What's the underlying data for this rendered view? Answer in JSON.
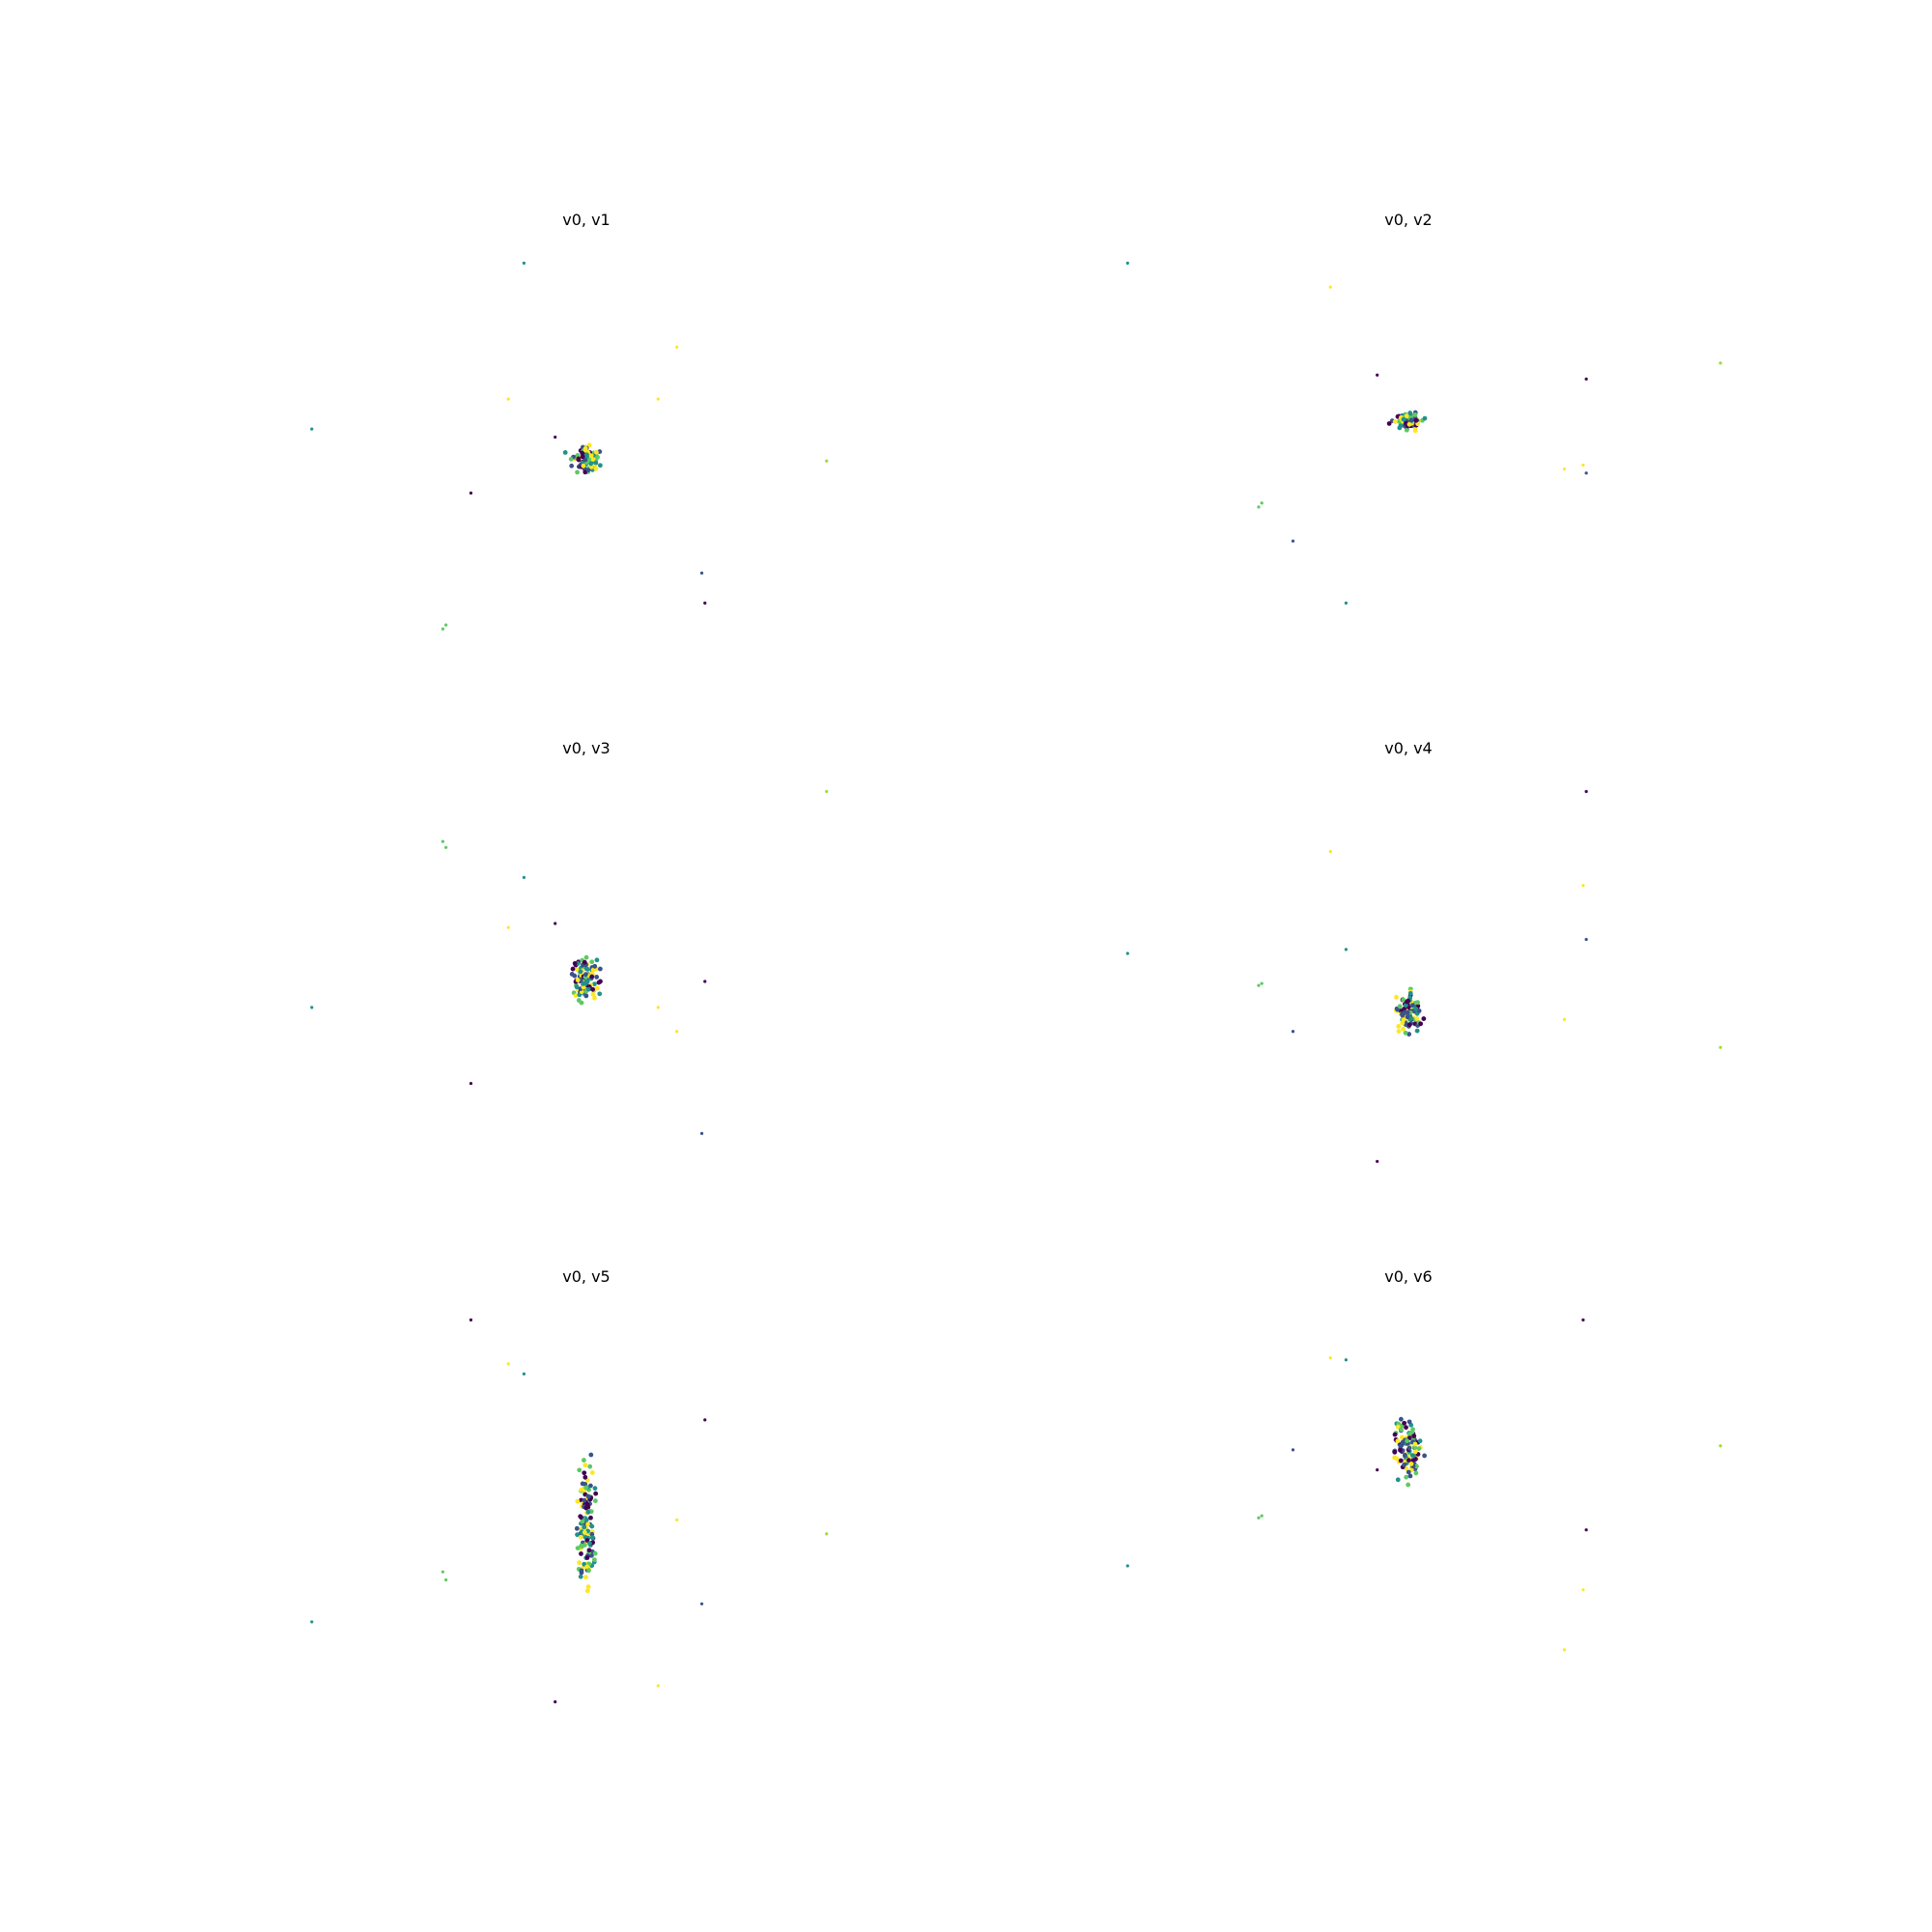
{
  "colors": {
    "c0": "#440154",
    "c1": "#3b528b",
    "c2": "#21918c",
    "c3": "#5ec962",
    "c4": "#fde725",
    "c5": "#a0da39"
  },
  "chart_data": [
    {
      "type": "scatter",
      "title": "v0, v1",
      "xlabel": "",
      "ylabel": "",
      "axes": "off",
      "grid": false,
      "xlim": [
        -1,
        1
      ],
      "ylim": [
        -1,
        1
      ],
      "outliers": [
        [
          -0.2,
          0.95,
          "c2"
        ],
        [
          0.29,
          0.53,
          "c4"
        ],
        [
          -0.25,
          0.27,
          "c4"
        ],
        [
          0.23,
          0.27,
          "c4"
        ],
        [
          -0.88,
          0.12,
          "c2"
        ],
        [
          -0.1,
          0.08,
          "c0"
        ],
        [
          -0.37,
          -0.2,
          "c0"
        ],
        [
          0.77,
          -0.04,
          "c5"
        ],
        [
          0.37,
          -0.6,
          "c1"
        ],
        [
          0.38,
          -0.75,
          "c0"
        ],
        [
          -0.46,
          -0.88,
          "c3"
        ],
        [
          -0.45,
          -0.86,
          "c3"
        ]
      ],
      "cluster": {
        "cx": 0.0,
        "cy": -0.03,
        "sx": 0.03,
        "sy": 0.045,
        "n": 90
      }
    },
    {
      "type": "scatter",
      "title": "v0, v2",
      "xlabel": "",
      "ylabel": "",
      "axes": "off",
      "grid": false,
      "xlim": [
        -1,
        1
      ],
      "ylim": [
        -1,
        1
      ],
      "outliers": [
        [
          -0.9,
          0.95,
          "c2"
        ],
        [
          -0.25,
          0.83,
          "c4"
        ],
        [
          -0.1,
          0.39,
          "c0"
        ],
        [
          0.57,
          0.37,
          "c0"
        ],
        [
          1.0,
          0.45,
          "c5"
        ],
        [
          0.5,
          -0.08,
          "c4"
        ],
        [
          0.56,
          -0.06,
          "c4"
        ],
        [
          0.57,
          -0.1,
          "c1"
        ],
        [
          -0.48,
          -0.27,
          "c3"
        ],
        [
          -0.47,
          -0.25,
          "c3"
        ],
        [
          -0.37,
          -0.44,
          "c1"
        ],
        [
          -0.2,
          -0.75,
          "c2"
        ]
      ],
      "cluster": {
        "cx": 0.0,
        "cy": 0.16,
        "sx": 0.03,
        "sy": 0.03,
        "n": 90
      }
    },
    {
      "type": "scatter",
      "title": "v0, v3",
      "xlabel": "",
      "ylabel": "",
      "axes": "off",
      "grid": false,
      "xlim": [
        -1,
        1
      ],
      "ylim": [
        -1,
        1
      ],
      "outliers": [
        [
          -0.46,
          0.7,
          "c3"
        ],
        [
          -0.45,
          0.67,
          "c3"
        ],
        [
          -0.2,
          0.52,
          "c2"
        ],
        [
          -0.25,
          0.27,
          "c4"
        ],
        [
          -0.1,
          0.29,
          "c0"
        ],
        [
          0.77,
          0.95,
          "c5"
        ],
        [
          0.38,
          0.0,
          "c0"
        ],
        [
          0.23,
          -0.13,
          "c4"
        ],
        [
          0.29,
          -0.25,
          "c4"
        ],
        [
          -0.88,
          -0.13,
          "c2"
        ],
        [
          -0.37,
          -0.51,
          "c0"
        ],
        [
          0.37,
          -0.76,
          "c1"
        ]
      ],
      "cluster": {
        "cx": 0.0,
        "cy": 0.0,
        "sx": 0.03,
        "sy": 0.07,
        "n": 100
      }
    },
    {
      "type": "scatter",
      "title": "v0, v4",
      "xlabel": "",
      "ylabel": "",
      "axes": "off",
      "grid": false,
      "xlim": [
        -1,
        1
      ],
      "ylim": [
        -1,
        1
      ],
      "outliers": [
        [
          0.57,
          0.95,
          "c0"
        ],
        [
          -0.25,
          0.65,
          "c4"
        ],
        [
          0.56,
          0.48,
          "c4"
        ],
        [
          -0.9,
          0.14,
          "c2"
        ],
        [
          -0.2,
          0.16,
          "c2"
        ],
        [
          0.57,
          0.21,
          "c1"
        ],
        [
          -0.48,
          -0.02,
          "c3"
        ],
        [
          -0.47,
          -0.01,
          "c3"
        ],
        [
          0.5,
          -0.19,
          "c4"
        ],
        [
          -0.37,
          -0.25,
          "c1"
        ],
        [
          1.0,
          -0.33,
          "c5"
        ],
        [
          -0.1,
          -0.9,
          "c0"
        ]
      ],
      "cluster": {
        "cx": 0.0,
        "cy": -0.16,
        "sx": 0.03,
        "sy": 0.07,
        "n": 100
      }
    },
    {
      "type": "scatter",
      "title": "v0, v5",
      "xlabel": "",
      "ylabel": "",
      "axes": "off",
      "grid": false,
      "xlim": [
        -1,
        1
      ],
      "ylim": [
        -1,
        1
      ],
      "outliers": [
        [
          -0.37,
          0.95,
          "c0"
        ],
        [
          -0.25,
          0.73,
          "c4"
        ],
        [
          -0.2,
          0.68,
          "c2"
        ],
        [
          0.38,
          0.45,
          "c0"
        ],
        [
          0.77,
          -0.12,
          "c5"
        ],
        [
          0.29,
          -0.05,
          "c4"
        ],
        [
          -0.46,
          -0.31,
          "c3"
        ],
        [
          -0.45,
          -0.35,
          "c3"
        ],
        [
          0.37,
          -0.47,
          "c1"
        ],
        [
          -0.88,
          -0.56,
          "c2"
        ],
        [
          0.23,
          -0.88,
          "c4"
        ],
        [
          -0.1,
          -0.96,
          "c0"
        ]
      ],
      "cluster": {
        "cx": 0.0,
        "cy": -0.05,
        "sx": 0.02,
        "sy": 0.2,
        "n": 130
      }
    },
    {
      "type": "scatter",
      "title": "v0, v6",
      "xlabel": "",
      "ylabel": "",
      "axes": "off",
      "grid": false,
      "xlim": [
        -1,
        1
      ],
      "ylim": [
        -1,
        1
      ],
      "outliers": [
        [
          0.56,
          0.95,
          "c0"
        ],
        [
          -0.25,
          0.76,
          "c4"
        ],
        [
          -0.2,
          0.75,
          "c2"
        ],
        [
          -0.37,
          0.3,
          "c1"
        ],
        [
          1.0,
          0.32,
          "c5"
        ],
        [
          -0.1,
          0.2,
          "c0"
        ],
        [
          -0.48,
          -0.04,
          "c3"
        ],
        [
          -0.47,
          -0.03,
          "c3"
        ],
        [
          0.57,
          -0.1,
          "c0"
        ],
        [
          -0.9,
          -0.28,
          "c2"
        ],
        [
          0.56,
          -0.4,
          "c4"
        ],
        [
          0.5,
          -0.7,
          "c4"
        ]
      ],
      "cluster": {
        "cx": 0.0,
        "cy": 0.3,
        "sx": 0.03,
        "sy": 0.1,
        "n": 110
      }
    }
  ]
}
